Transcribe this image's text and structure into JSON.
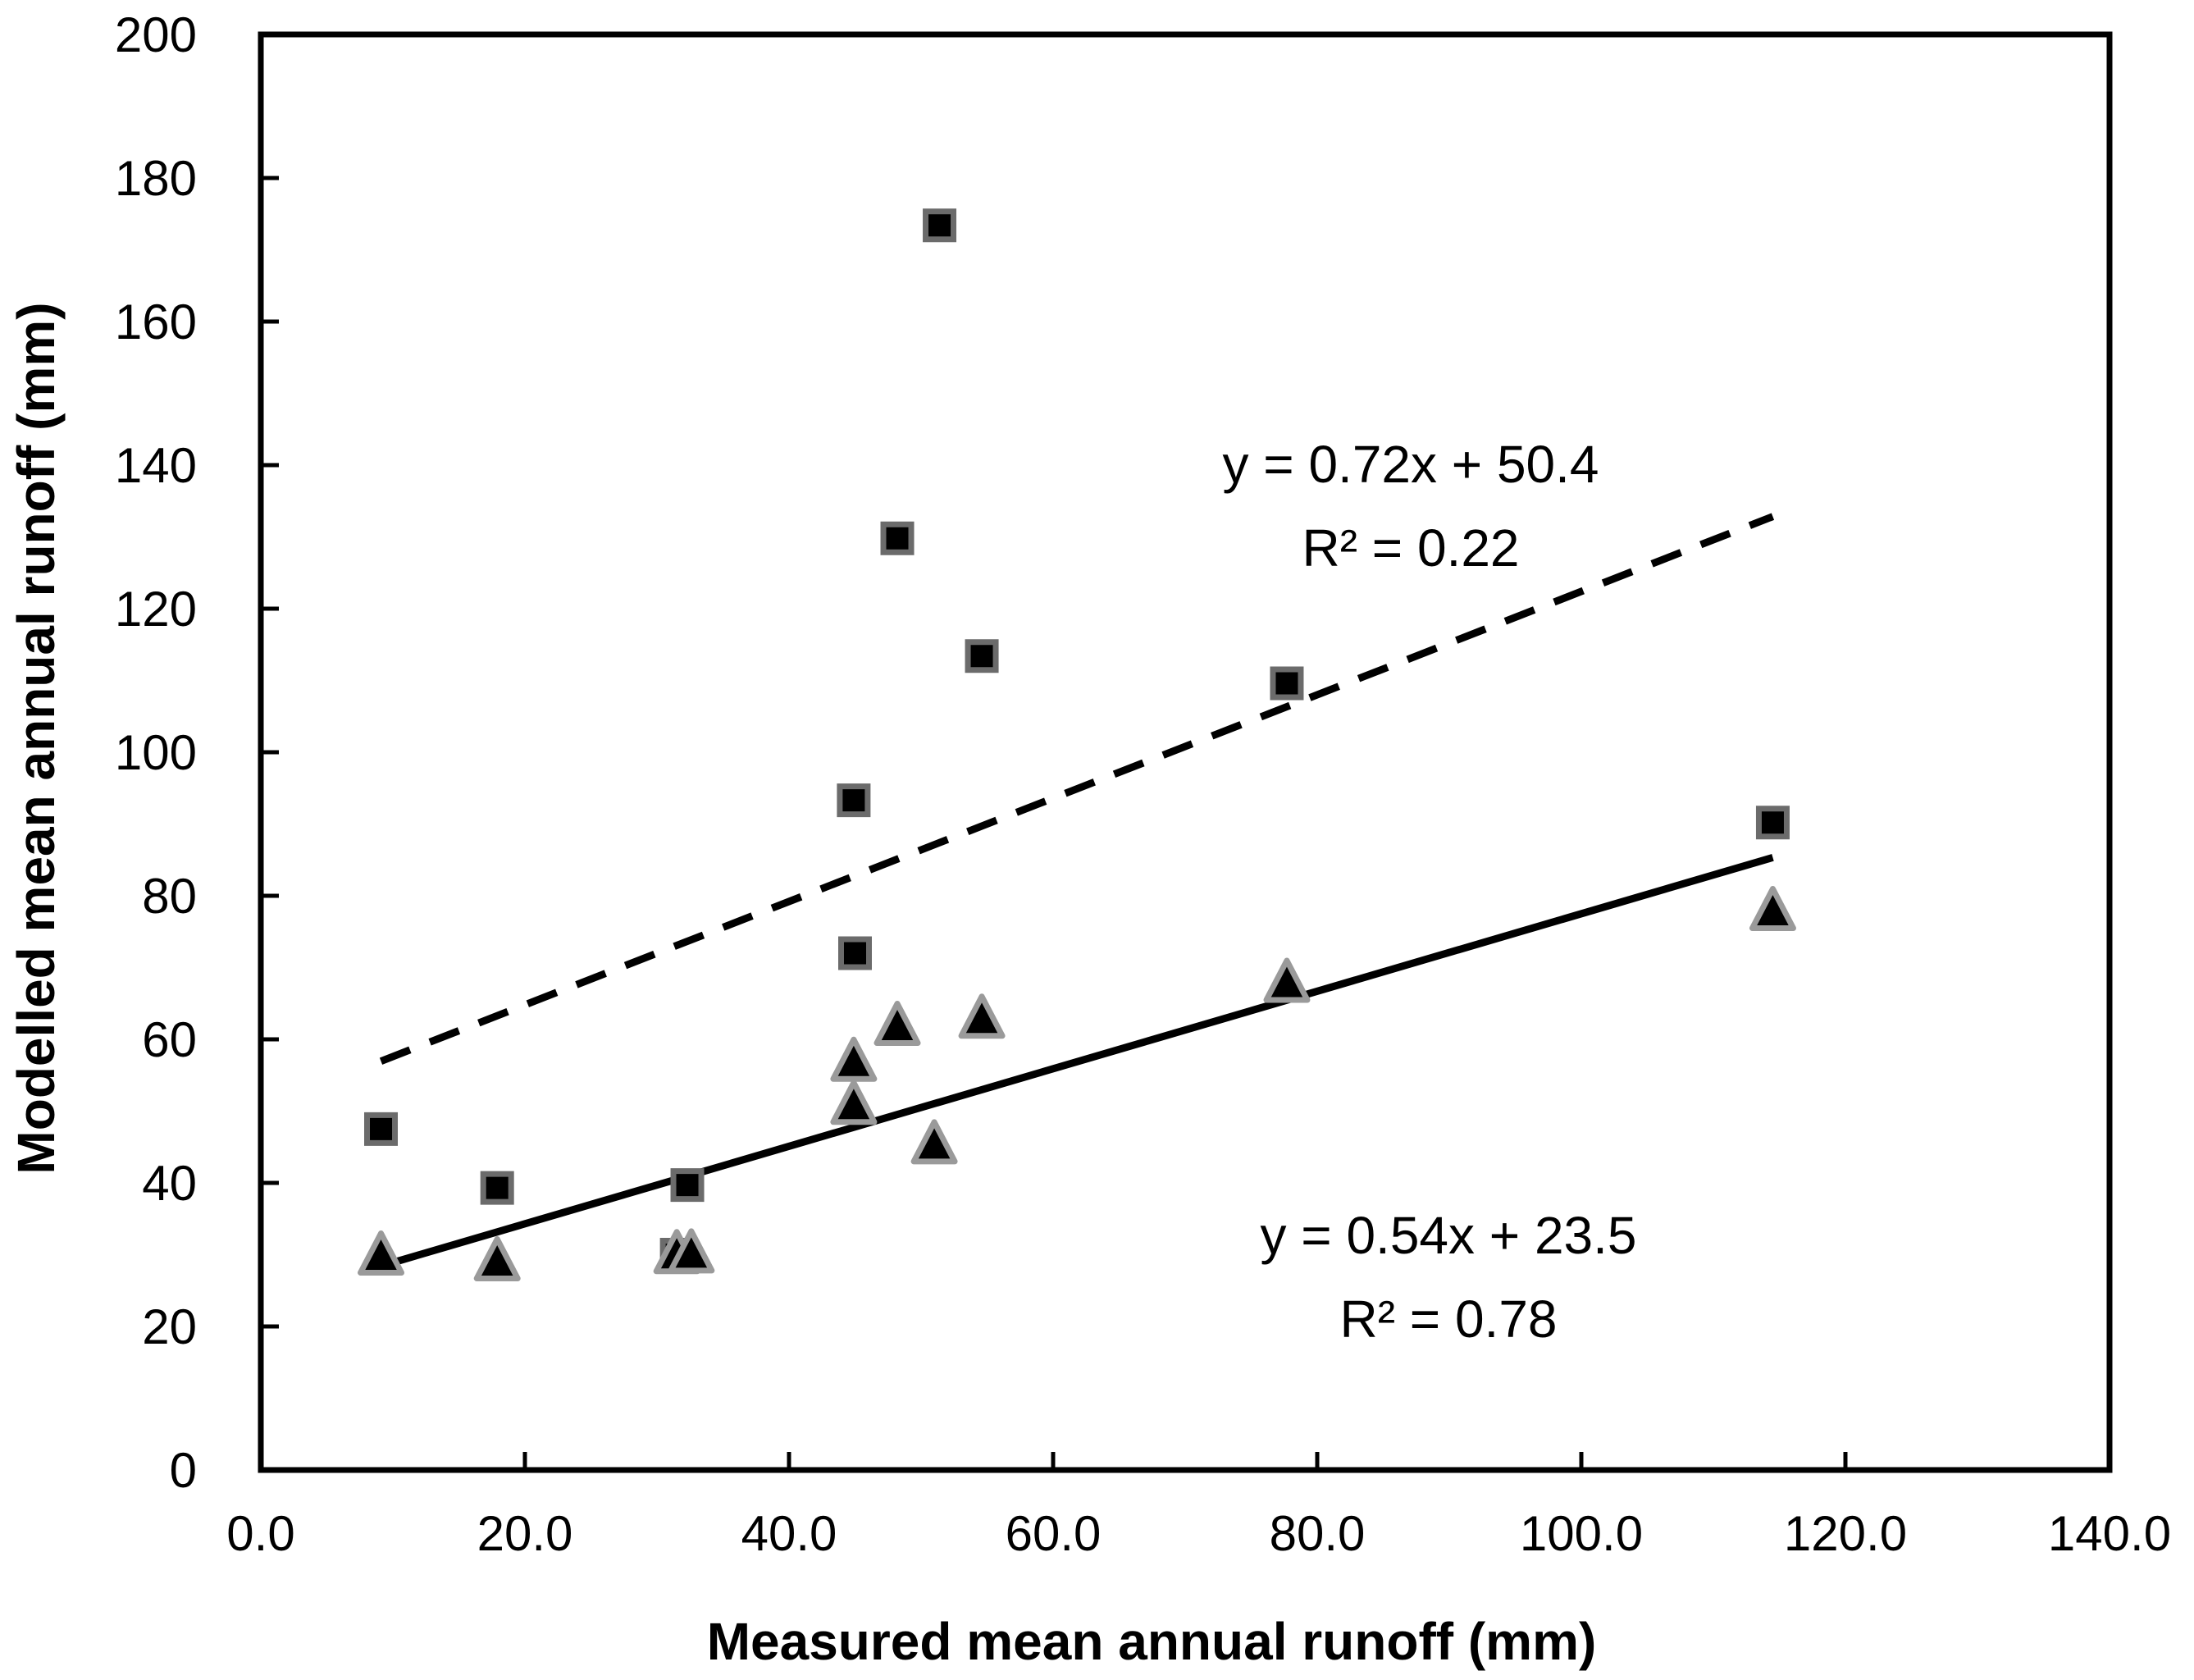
{
  "chart_data": {
    "type": "scatter",
    "title": "",
    "xlabel": "Measured mean annual runoff (mm)",
    "ylabel": "Modelled mean annual runoff (mm)",
    "xlim": [
      0,
      140
    ],
    "ylim": [
      0,
      200
    ],
    "x_ticks": [
      0,
      20,
      40,
      60,
      80,
      100,
      120,
      140
    ],
    "x_tick_labels": [
      "0.0",
      "20.0",
      "40.0",
      "60.0",
      "80.0",
      "100.0",
      "120.0",
      "140.0"
    ],
    "y_ticks": [
      0,
      20,
      40,
      60,
      80,
      100,
      120,
      140,
      160,
      180,
      200
    ],
    "y_tick_labels": [
      "0",
      "20",
      "40",
      "60",
      "80",
      "100",
      "120",
      "140",
      "160",
      "180",
      "200"
    ],
    "grid": false,
    "series": [
      {
        "name": "squares",
        "marker": "square",
        "x": [
          9.1,
          17.9,
          31.5,
          32.3,
          44.9,
          45.0,
          48.2,
          51.4,
          54.6,
          77.7,
          114.5
        ],
        "y": [
          47.5,
          39.3,
          30.0,
          39.7,
          93.3,
          72.0,
          129.8,
          173.4,
          113.4,
          109.6,
          90.2
        ]
      },
      {
        "name": "triangles",
        "marker": "triangle",
        "x": [
          9.1,
          17.9,
          31.5,
          32.6,
          44.9,
          44.9,
          48.2,
          51.0,
          54.6,
          77.7,
          114.5
        ],
        "y": [
          30.0,
          29.2,
          30.2,
          30.3,
          57.0,
          51.0,
          62.0,
          45.5,
          63.0,
          68.0,
          78.0
        ]
      }
    ],
    "trendlines": [
      {
        "name": "squares-fit",
        "style": "dashed",
        "slope": 0.72,
        "intercept": 50.4,
        "x_range": [
          9.1,
          114.5
        ]
      },
      {
        "name": "triangles-fit",
        "style": "solid",
        "slope": 0.54,
        "intercept": 23.5,
        "x_range": [
          9.1,
          114.5
        ]
      }
    ],
    "annotations": [
      {
        "series": "squares-fit",
        "equation": "y = 0.72x + 50.4",
        "r2": "R² = 0.22"
      },
      {
        "series": "triangles-fit",
        "equation": "y = 0.54x + 23.5",
        "r2": "R² = 0.78"
      }
    ]
  }
}
